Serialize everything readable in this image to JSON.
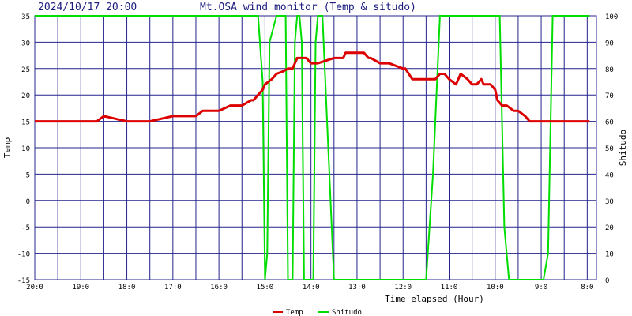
{
  "chart_data": {
    "type": "line",
    "timestamp": "2024/10/17 20:00",
    "title": "Mt.OSA wind monitor (Temp & situdo)",
    "xlabel": "Time elapsed (Hour)",
    "ylabel_left": "Temp",
    "ylabel_right": "Shitudo",
    "ylim_left": [
      -15,
      35
    ],
    "ylim_right": [
      0,
      100
    ],
    "yticks_left": [
      "35",
      "30",
      "25",
      "20",
      "15",
      "10",
      "5",
      "0",
      "-5",
      "-10",
      "-15"
    ],
    "yticks_right": [
      "100",
      "90",
      "80",
      "70",
      "60",
      "50",
      "40",
      "30",
      "20",
      "10",
      "0"
    ],
    "xlim": [
      20,
      7.8
    ],
    "xticks": [
      {
        "x": 20,
        "label": "20:0"
      },
      {
        "x": 19,
        "label": "19:0"
      },
      {
        "x": 18,
        "label": "18:0"
      },
      {
        "x": 17,
        "label": "17:0"
      },
      {
        "x": 16,
        "label": "16:0"
      },
      {
        "x": 15,
        "label": "15:0"
      },
      {
        "x": 14,
        "label": "14:0"
      },
      {
        "x": 13,
        "label": "13:0"
      },
      {
        "x": 12,
        "label": "12:0"
      },
      {
        "x": 11,
        "label": "11:0"
      },
      {
        "x": 10,
        "label": "10:0"
      },
      {
        "x": 9,
        "label": "9:0"
      },
      {
        "x": 8,
        "label": "8:0"
      }
    ],
    "grid": true,
    "legend_position": "bottom-center",
    "series": [
      {
        "name": "Temp",
        "axis": "left",
        "color": "#dd0000",
        "x": [
          20.0,
          19.5,
          19.3,
          19.25,
          19.0,
          18.95,
          18.9,
          18.85,
          18.8,
          18.75,
          18.65,
          18.5,
          18.0,
          17.5,
          17.0,
          16.95,
          16.8,
          16.5,
          16.35,
          16.3,
          16.2,
          16.0,
          15.75,
          15.6,
          15.5,
          15.3,
          15.25,
          15.05,
          15.0,
          14.85,
          14.75,
          14.6,
          14.5,
          14.4,
          14.3,
          14.25,
          14.1,
          14.0,
          13.85,
          13.5,
          13.45,
          13.3,
          13.25,
          13.0,
          12.85,
          12.75,
          12.7,
          12.5,
          12.45,
          12.3,
          12.0,
          11.95,
          11.8,
          11.5,
          11.3,
          11.2,
          11.1,
          11.0,
          10.85,
          10.75,
          10.6,
          10.5,
          10.4,
          10.3,
          10.25,
          10.1,
          10.0,
          9.95,
          9.85,
          9.75,
          9.6,
          9.5,
          9.35,
          9.25,
          9.15,
          9.05,
          9.0,
          8.95,
          8.9,
          8.85,
          8.75,
          8.6,
          8.5,
          8.45,
          8.35,
          8.2,
          8.1,
          8.0,
          7.95
        ],
        "y": [
          15,
          15,
          15,
          15,
          15,
          15,
          15,
          15,
          15,
          15,
          15,
          16,
          15,
          15,
          16,
          16,
          16,
          16,
          17,
          17,
          17,
          17,
          18,
          18,
          18,
          19,
          19,
          21,
          22,
          23,
          24,
          24.5,
          25,
          25,
          27,
          27,
          27,
          26,
          26,
          27,
          27,
          27,
          28,
          28,
          28,
          27,
          27,
          26,
          26,
          26,
          25,
          25,
          23,
          23,
          23,
          24,
          24,
          23,
          22,
          24,
          23,
          22,
          22,
          23,
          22,
          22,
          21,
          19,
          18,
          18,
          17,
          17,
          16,
          15,
          15,
          15,
          15,
          15,
          15,
          15,
          15,
          15,
          15,
          15,
          15,
          15,
          15,
          15,
          15
        ]
      },
      {
        "name": "Shitudo",
        "axis": "right",
        "color": "#00dd00",
        "x": [
          20.0,
          15.15,
          15.05,
          15.0,
          14.95,
          14.9,
          14.75,
          14.65,
          14.55,
          14.5,
          14.45,
          14.4,
          14.35,
          14.3,
          14.25,
          14.2,
          14.15,
          14.1,
          14.05,
          13.95,
          13.9,
          13.85,
          13.75,
          13.5,
          13.4,
          13.3,
          13.2,
          12.0,
          11.5,
          11.35,
          11.2,
          11.05,
          11.0,
          10.95,
          10.7,
          10.2,
          10.05,
          9.95,
          9.9,
          9.85,
          9.8,
          9.7,
          9.4,
          9.25,
          9.1,
          9.0,
          8.95,
          8.85,
          8.8,
          8.75,
          8.7,
          8.55,
          8.5,
          8.45,
          8.35,
          8.3,
          8.25,
          8.2,
          8.15,
          8.05,
          8.0,
          7.95
        ],
        "y": [
          100,
          100,
          75,
          0,
          10,
          90,
          100,
          100,
          100,
          0,
          0,
          0,
          90,
          100,
          100,
          90,
          0,
          0,
          0,
          0,
          90,
          100,
          100,
          0,
          0,
          0,
          0,
          0,
          0,
          40,
          100,
          100,
          100,
          100,
          100,
          100,
          100,
          100,
          100,
          60,
          20,
          0,
          0,
          0,
          0,
          0,
          0,
          10,
          55,
          100,
          100,
          100,
          100,
          100,
          100,
          100,
          100,
          100,
          100,
          100,
          100,
          100
        ]
      }
    ]
  }
}
